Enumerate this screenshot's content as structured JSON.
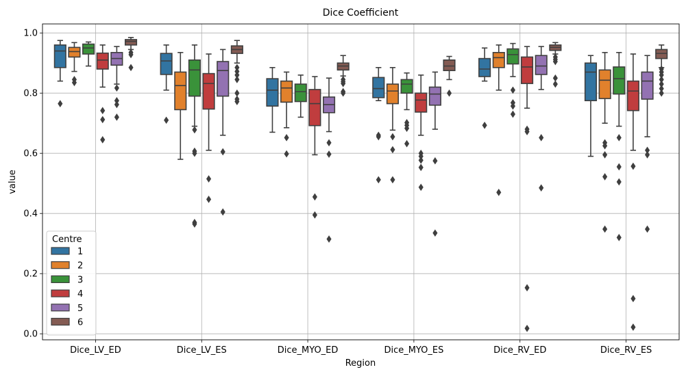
{
  "chart_data": {
    "type": "box",
    "title": "Dice Coefficient",
    "xlabel": "Region",
    "ylabel": "value",
    "ylim": [
      -0.02,
      1.03
    ],
    "yticks": [
      0.0,
      0.2,
      0.4,
      0.6,
      0.8,
      1.0
    ],
    "ytick_labels": [
      "0.0",
      "0.2",
      "0.4",
      "0.6",
      "0.8",
      "1.0"
    ],
    "grid": true,
    "categories": [
      "Dice_LV_ED",
      "Dice_LV_ES",
      "Dice_MYO_ED",
      "Dice_MYO_ES",
      "Dice_RV_ED",
      "Dice_RV_ES"
    ],
    "legend": {
      "title": "Centre",
      "placement": "lower-left",
      "entries": [
        {
          "label": "1",
          "color": "#3274a1"
        },
        {
          "label": "2",
          "color": "#e1812c"
        },
        {
          "label": "3",
          "color": "#3a923a"
        },
        {
          "label": "4",
          "color": "#c03d3e"
        },
        {
          "label": "5",
          "color": "#9372b2"
        },
        {
          "label": "6",
          "color": "#845b53"
        }
      ]
    },
    "series": [
      {
        "name": "1",
        "color": "#3274a1",
        "boxes": [
          {
            "q1": 0.885,
            "median": 0.94,
            "q3": 0.96,
            "whislo": 0.84,
            "whishi": 0.975,
            "fliers": [
              0.765
            ]
          },
          {
            "q1": 0.862,
            "median": 0.907,
            "q3": 0.932,
            "whislo": 0.81,
            "whishi": 0.96,
            "fliers": [
              0.71
            ]
          },
          {
            "q1": 0.757,
            "median": 0.81,
            "q3": 0.848,
            "whislo": 0.67,
            "whishi": 0.885,
            "fliers": []
          },
          {
            "q1": 0.785,
            "median": 0.815,
            "q3": 0.852,
            "whislo": 0.775,
            "whishi": 0.885,
            "fliers": [
              0.66,
              0.655,
              0.512
            ]
          },
          {
            "q1": 0.855,
            "median": 0.88,
            "q3": 0.915,
            "whislo": 0.84,
            "whishi": 0.95,
            "fliers": [
              0.693
            ]
          },
          {
            "q1": 0.775,
            "median": 0.87,
            "q3": 0.9,
            "whislo": 0.59,
            "whishi": 0.925,
            "fliers": []
          }
        ]
      },
      {
        "name": "2",
        "color": "#e1812c",
        "boxes": [
          {
            "q1": 0.92,
            "median": 0.938,
            "q3": 0.952,
            "whislo": 0.872,
            "whishi": 0.968,
            "fliers": [
              0.845,
              0.835
            ]
          },
          {
            "q1": 0.745,
            "median": 0.825,
            "q3": 0.87,
            "whislo": 0.58,
            "whishi": 0.935,
            "fliers": []
          },
          {
            "q1": 0.77,
            "median": 0.817,
            "q3": 0.84,
            "whislo": 0.685,
            "whishi": 0.87,
            "fliers": [
              0.652,
              0.598
            ]
          },
          {
            "q1": 0.765,
            "median": 0.807,
            "q3": 0.83,
            "whislo": 0.677,
            "whishi": 0.885,
            "fliers": [
              0.655,
              0.612,
              0.512
            ]
          },
          {
            "q1": 0.885,
            "median": 0.918,
            "q3": 0.935,
            "whislo": 0.81,
            "whishi": 0.96,
            "fliers": [
              0.47
            ]
          },
          {
            "q1": 0.782,
            "median": 0.843,
            "q3": 0.877,
            "whislo": 0.7,
            "whishi": 0.935,
            "fliers": [
              0.635,
              0.625,
              0.595,
              0.522,
              0.348
            ]
          }
        ]
      },
      {
        "name": "3",
        "color": "#3a923a",
        "boxes": [
          {
            "q1": 0.93,
            "median": 0.95,
            "q3": 0.963,
            "whislo": 0.89,
            "whishi": 0.97,
            "fliers": []
          },
          {
            "q1": 0.79,
            "median": 0.877,
            "q3": 0.91,
            "whislo": 0.69,
            "whishi": 0.96,
            "fliers": [
              0.678,
              0.607,
              0.6,
              0.37,
              0.365
            ]
          },
          {
            "q1": 0.772,
            "median": 0.805,
            "q3": 0.83,
            "whislo": 0.72,
            "whishi": 0.86,
            "fliers": []
          },
          {
            "q1": 0.8,
            "median": 0.83,
            "q3": 0.845,
            "whislo": 0.745,
            "whishi": 0.867,
            "fliers": [
              0.702,
              0.693,
              0.683,
              0.632
            ]
          },
          {
            "q1": 0.897,
            "median": 0.928,
            "q3": 0.947,
            "whislo": 0.855,
            "whishi": 0.965,
            "fliers": [
              0.81,
              0.768,
              0.757,
              0.73
            ]
          },
          {
            "q1": 0.797,
            "median": 0.848,
            "q3": 0.887,
            "whislo": 0.69,
            "whishi": 0.935,
            "fliers": [
              0.652,
              0.555,
              0.505,
              0.32
            ]
          }
        ]
      },
      {
        "name": "4",
        "color": "#c03d3e",
        "boxes": [
          {
            "q1": 0.88,
            "median": 0.91,
            "q3": 0.933,
            "whislo": 0.82,
            "whishi": 0.96,
            "fliers": [
              0.742,
              0.712,
              0.645
            ]
          },
          {
            "q1": 0.747,
            "median": 0.832,
            "q3": 0.865,
            "whislo": 0.61,
            "whishi": 0.93,
            "fliers": [
              0.515,
              0.447
            ]
          },
          {
            "q1": 0.692,
            "median": 0.765,
            "q3": 0.812,
            "whislo": 0.595,
            "whishi": 0.855,
            "fliers": [
              0.455,
              0.395
            ]
          },
          {
            "q1": 0.737,
            "median": 0.777,
            "q3": 0.8,
            "whislo": 0.66,
            "whishi": 0.86,
            "fliers": [
              0.6,
              0.59,
              0.577,
              0.553,
              0.487
            ]
          },
          {
            "q1": 0.832,
            "median": 0.887,
            "q3": 0.92,
            "whislo": 0.75,
            "whishi": 0.955,
            "fliers": [
              0.68,
              0.672,
              0.153,
              0.018
            ]
          },
          {
            "q1": 0.742,
            "median": 0.807,
            "q3": 0.84,
            "whislo": 0.61,
            "whishi": 0.93,
            "fliers": [
              0.557,
              0.117,
              0.022
            ]
          }
        ]
      },
      {
        "name": "5",
        "color": "#9372b2",
        "boxes": [
          {
            "q1": 0.893,
            "median": 0.915,
            "q3": 0.935,
            "whislo": 0.83,
            "whishi": 0.955,
            "fliers": [
              0.817,
              0.775,
              0.762,
              0.72
            ]
          },
          {
            "q1": 0.79,
            "median": 0.875,
            "q3": 0.905,
            "whislo": 0.66,
            "whishi": 0.945,
            "fliers": [
              0.605,
              0.405
            ]
          },
          {
            "q1": 0.735,
            "median": 0.762,
            "q3": 0.787,
            "whislo": 0.672,
            "whishi": 0.85,
            "fliers": [
              0.635,
              0.597,
              0.315
            ]
          },
          {
            "q1": 0.76,
            "median": 0.797,
            "q3": 0.82,
            "whislo": 0.68,
            "whishi": 0.87,
            "fliers": [
              0.575,
              0.335
            ]
          },
          {
            "q1": 0.862,
            "median": 0.89,
            "q3": 0.925,
            "whislo": 0.812,
            "whishi": 0.955,
            "fliers": [
              0.652,
              0.485
            ]
          },
          {
            "q1": 0.78,
            "median": 0.84,
            "q3": 0.87,
            "whislo": 0.655,
            "whishi": 0.925,
            "fliers": [
              0.61,
              0.595,
              0.348
            ]
          }
        ]
      },
      {
        "name": "6",
        "color": "#845b53",
        "boxes": [
          {
            "q1": 0.96,
            "median": 0.972,
            "q3": 0.978,
            "whislo": 0.945,
            "whishi": 0.985,
            "fliers": [
              0.935,
              0.928,
              0.885
            ]
          },
          {
            "q1": 0.932,
            "median": 0.945,
            "q3": 0.957,
            "whislo": 0.9,
            "whishi": 0.975,
            "fliers": [
              0.885,
              0.872,
              0.86,
              0.845,
              0.8,
              0.78,
              0.772
            ]
          },
          {
            "q1": 0.877,
            "median": 0.89,
            "q3": 0.9,
            "whislo": 0.857,
            "whishi": 0.925,
            "fliers": [
              0.845,
              0.838,
              0.832,
              0.805,
              0.8
            ]
          },
          {
            "q1": 0.875,
            "median": 0.89,
            "q3": 0.91,
            "whislo": 0.845,
            "whishi": 0.922,
            "fliers": [
              0.8
            ]
          },
          {
            "q1": 0.942,
            "median": 0.952,
            "q3": 0.96,
            "whislo": 0.93,
            "whishi": 0.968,
            "fliers": [
              0.92,
              0.912,
              0.905,
              0.85,
              0.83
            ]
          },
          {
            "q1": 0.915,
            "median": 0.932,
            "q3": 0.945,
            "whislo": 0.885,
            "whishi": 0.96,
            "fliers": [
              0.88,
              0.87,
              0.86,
              0.845,
              0.83,
              0.815,
              0.8
            ]
          }
        ]
      }
    ]
  }
}
